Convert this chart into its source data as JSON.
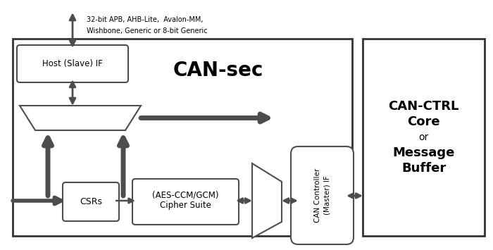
{
  "bg_color": "#ffffff",
  "title": "CAN-sec",
  "top_label_line1": "32-bit APB, AHB-Lite,  Avalon-MM,",
  "top_label_line2": "Wishbone, Generic or 8-bit Generic",
  "host_if_label": "Host (Slave) IF",
  "csrs_label": "CSRs",
  "cipher_label_line1": "Cipher Suite",
  "cipher_label_line2": "(AES-CCM/GCM)",
  "can_ctrl_label_line1": "CAN Controller",
  "can_ctrl_label_line2": "(Master) IF",
  "can_ctrl_box_label": "CAN-CTRL\nCore\nor\nMessage\nBuffer",
  "arrow_color": "#4d4d4d",
  "box_edge_color": "#4d4d4d",
  "main_box_edge": "#333333",
  "fig_w": 7.0,
  "fig_h": 3.55,
  "dpi": 100
}
